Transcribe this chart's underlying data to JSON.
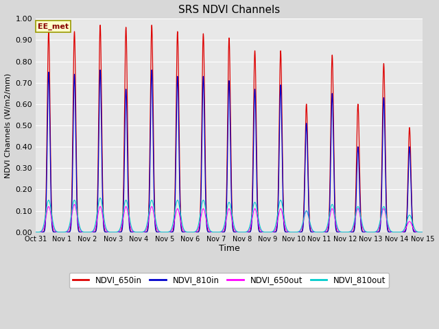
{
  "title": "SRS NDVI Channels",
  "ylabel": "NDVI Channels (W/m2/mm)",
  "xlabel": "Time",
  "ylim": [
    0.0,
    1.0
  ],
  "yticks": [
    0.0,
    0.1,
    0.2,
    0.3,
    0.4,
    0.5,
    0.6,
    0.7,
    0.8,
    0.9,
    1.0
  ],
  "xtick_labels": [
    "Oct 31",
    "Nov 1",
    "Nov 2",
    "Nov 3",
    "Nov 4",
    "Nov 5",
    "Nov 6",
    "Nov 7",
    "Nov 8",
    "Nov 9",
    "Nov 9",
    "Nov 10",
    "Nov 11",
    "Nov 12",
    "Nov 13",
    "Nov 14",
    "Nov 15"
  ],
  "annotation_text": "EE_met",
  "annotation_bg": "#ffffcc",
  "annotation_border": "#999900",
  "colors": {
    "NDVI_650in": "#dd0000",
    "NDVI_810in": "#0000cc",
    "NDVI_650out": "#ff00ff",
    "NDVI_810out": "#00cccc"
  },
  "background_color": "#d8d8d8",
  "plot_bg": "#e8e8e8",
  "peak_650in": [
    0.94,
    0.94,
    0.97,
    0.96,
    0.97,
    0.94,
    0.93,
    0.91,
    0.85,
    0.85,
    0.6,
    0.83,
    0.6,
    0.79,
    0.49
  ],
  "peak_810in": [
    0.75,
    0.74,
    0.76,
    0.67,
    0.76,
    0.73,
    0.73,
    0.71,
    0.67,
    0.69,
    0.51,
    0.65,
    0.4,
    0.63,
    0.4
  ],
  "peak_650out": [
    0.12,
    0.13,
    0.12,
    0.12,
    0.12,
    0.11,
    0.11,
    0.11,
    0.11,
    0.11,
    0.1,
    0.11,
    0.11,
    0.11,
    0.05
  ],
  "peak_810out": [
    0.15,
    0.15,
    0.16,
    0.15,
    0.15,
    0.15,
    0.15,
    0.14,
    0.14,
    0.15,
    0.1,
    0.13,
    0.12,
    0.12,
    0.08
  ]
}
